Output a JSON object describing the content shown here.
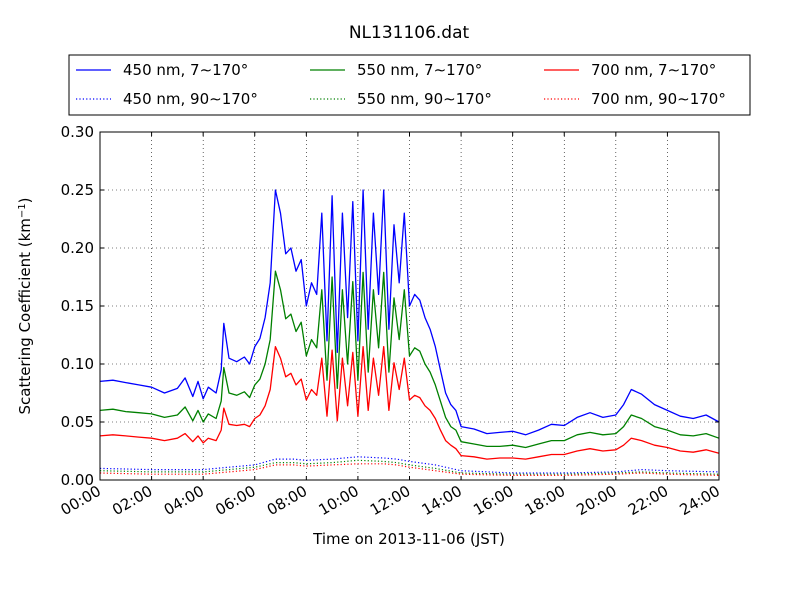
{
  "chart_data": {
    "type": "line",
    "title": "NL131106.dat",
    "xlabel": "Time on 2013-11-06 (JST)",
    "ylabel_main": "Scattering Coefficient (km",
    "ylabel_sup": "−1",
    "ylabel_close": ")",
    "xlim": [
      0,
      24
    ],
    "ylim": [
      0,
      0.3
    ],
    "grid": true,
    "legend_position": "top (above plot)",
    "x_ticks": [
      {
        "value": 0,
        "label": "00:00"
      },
      {
        "value": 2,
        "label": "02:00"
      },
      {
        "value": 4,
        "label": "04:00"
      },
      {
        "value": 6,
        "label": "06:00"
      },
      {
        "value": 8,
        "label": "08:00"
      },
      {
        "value": 10,
        "label": "10:00"
      },
      {
        "value": 12,
        "label": "12:00"
      },
      {
        "value": 14,
        "label": "14:00"
      },
      {
        "value": 16,
        "label": "16:00"
      },
      {
        "value": 18,
        "label": "18:00"
      },
      {
        "value": 20,
        "label": "20:00"
      },
      {
        "value": 22,
        "label": "22:00"
      },
      {
        "value": 24,
        "label": "24:00"
      }
    ],
    "y_ticks": [
      {
        "value": 0.0,
        "label": "0.00"
      },
      {
        "value": 0.05,
        "label": "0.05"
      },
      {
        "value": 0.1,
        "label": "0.10"
      },
      {
        "value": 0.15,
        "label": "0.15"
      },
      {
        "value": 0.2,
        "label": "0.20"
      },
      {
        "value": 0.25,
        "label": "0.25"
      },
      {
        "value": 0.3,
        "label": "0.30"
      }
    ],
    "series": [
      {
        "name": "450 nm, 7∼170°",
        "color": "#0000ff",
        "dash": "solid",
        "x": [
          0,
          0.5,
          1,
          1.5,
          2,
          2.5,
          3,
          3.3,
          3.6,
          3.8,
          4,
          4.2,
          4.5,
          4.7,
          4.8,
          5,
          5.3,
          5.6,
          5.8,
          6,
          6.2,
          6.4,
          6.6,
          6.8,
          7,
          7.2,
          7.4,
          7.6,
          7.8,
          8,
          8.2,
          8.4,
          8.6,
          8.8,
          9,
          9.2,
          9.4,
          9.6,
          9.8,
          10,
          10.2,
          10.4,
          10.6,
          10.8,
          11,
          11.2,
          11.4,
          11.6,
          11.8,
          12,
          12.2,
          12.4,
          12.6,
          12.8,
          13,
          13.2,
          13.4,
          13.6,
          13.8,
          14,
          14.5,
          15,
          15.5,
          16,
          16.5,
          17,
          17.5,
          18,
          18.5,
          19,
          19.5,
          20,
          20.3,
          20.6,
          21,
          21.5,
          22,
          22.5,
          23,
          23.5,
          24
        ],
        "y": [
          0.085,
          0.086,
          0.084,
          0.082,
          0.08,
          0.075,
          0.079,
          0.088,
          0.072,
          0.085,
          0.07,
          0.08,
          0.075,
          0.095,
          0.135,
          0.105,
          0.102,
          0.106,
          0.1,
          0.115,
          0.122,
          0.14,
          0.17,
          0.25,
          0.23,
          0.195,
          0.2,
          0.18,
          0.19,
          0.15,
          0.17,
          0.16,
          0.23,
          0.12,
          0.245,
          0.11,
          0.23,
          0.14,
          0.24,
          0.12,
          0.25,
          0.13,
          0.23,
          0.16,
          0.25,
          0.13,
          0.22,
          0.17,
          0.23,
          0.15,
          0.16,
          0.155,
          0.14,
          0.13,
          0.115,
          0.095,
          0.075,
          0.065,
          0.06,
          0.046,
          0.044,
          0.04,
          0.041,
          0.042,
          0.039,
          0.043,
          0.048,
          0.047,
          0.054,
          0.058,
          0.054,
          0.056,
          0.065,
          0.078,
          0.074,
          0.065,
          0.06,
          0.055,
          0.053,
          0.056,
          0.05
        ]
      },
      {
        "name": "550 nm, 7∼170°",
        "color": "#008000",
        "dash": "solid",
        "x": [
          0,
          0.5,
          1,
          1.5,
          2,
          2.5,
          3,
          3.3,
          3.6,
          3.8,
          4,
          4.2,
          4.5,
          4.7,
          4.8,
          5,
          5.3,
          5.6,
          5.8,
          6,
          6.2,
          6.4,
          6.6,
          6.8,
          7,
          7.2,
          7.4,
          7.6,
          7.8,
          8,
          8.2,
          8.4,
          8.6,
          8.8,
          9,
          9.2,
          9.4,
          9.6,
          9.8,
          10,
          10.2,
          10.4,
          10.6,
          10.8,
          11,
          11.2,
          11.4,
          11.6,
          11.8,
          12,
          12.2,
          12.4,
          12.6,
          12.8,
          13,
          13.2,
          13.4,
          13.6,
          13.8,
          14,
          14.5,
          15,
          15.5,
          16,
          16.5,
          17,
          17.5,
          18,
          18.5,
          19,
          19.5,
          20,
          20.3,
          20.6,
          21,
          21.5,
          22,
          22.5,
          23,
          23.5,
          24
        ],
        "y": [
          0.06,
          0.061,
          0.059,
          0.058,
          0.057,
          0.054,
          0.056,
          0.063,
          0.051,
          0.06,
          0.05,
          0.057,
          0.053,
          0.068,
          0.097,
          0.075,
          0.073,
          0.076,
          0.071,
          0.082,
          0.087,
          0.1,
          0.121,
          0.18,
          0.164,
          0.139,
          0.143,
          0.128,
          0.136,
          0.107,
          0.121,
          0.114,
          0.164,
          0.086,
          0.175,
          0.079,
          0.164,
          0.1,
          0.171,
          0.086,
          0.179,
          0.093,
          0.164,
          0.114,
          0.179,
          0.093,
          0.157,
          0.121,
          0.164,
          0.107,
          0.114,
          0.111,
          0.1,
          0.093,
          0.082,
          0.068,
          0.054,
          0.046,
          0.043,
          0.033,
          0.031,
          0.029,
          0.029,
          0.03,
          0.028,
          0.031,
          0.034,
          0.034,
          0.039,
          0.041,
          0.039,
          0.04,
          0.046,
          0.056,
          0.053,
          0.046,
          0.043,
          0.039,
          0.038,
          0.04,
          0.036
        ]
      },
      {
        "name": "700 nm, 7∼170°",
        "color": "#ff0000",
        "dash": "solid",
        "x": [
          0,
          0.5,
          1,
          1.5,
          2,
          2.5,
          3,
          3.3,
          3.6,
          3.8,
          4,
          4.2,
          4.5,
          4.7,
          4.8,
          5,
          5.3,
          5.6,
          5.8,
          6,
          6.2,
          6.4,
          6.6,
          6.8,
          7,
          7.2,
          7.4,
          7.6,
          7.8,
          8,
          8.2,
          8.4,
          8.6,
          8.8,
          9,
          9.2,
          9.4,
          9.6,
          9.8,
          10,
          10.2,
          10.4,
          10.6,
          10.8,
          11,
          11.2,
          11.4,
          11.6,
          11.8,
          12,
          12.2,
          12.4,
          12.6,
          12.8,
          13,
          13.2,
          13.4,
          13.6,
          13.8,
          14,
          14.5,
          15,
          15.5,
          16,
          16.5,
          17,
          17.5,
          18,
          18.5,
          19,
          19.5,
          20,
          20.3,
          20.6,
          21,
          21.5,
          22,
          22.5,
          23,
          23.5,
          24
        ],
        "y": [
          0.038,
          0.039,
          0.038,
          0.037,
          0.036,
          0.034,
          0.036,
          0.04,
          0.033,
          0.038,
          0.032,
          0.036,
          0.034,
          0.043,
          0.062,
          0.048,
          0.047,
          0.048,
          0.046,
          0.053,
          0.056,
          0.064,
          0.078,
          0.115,
          0.105,
          0.089,
          0.092,
          0.082,
          0.087,
          0.069,
          0.078,
          0.073,
          0.105,
          0.055,
          0.112,
          0.051,
          0.105,
          0.064,
          0.11,
          0.055,
          0.115,
          0.06,
          0.105,
          0.073,
          0.115,
          0.06,
          0.101,
          0.078,
          0.105,
          0.069,
          0.073,
          0.071,
          0.064,
          0.06,
          0.053,
          0.043,
          0.034,
          0.03,
          0.027,
          0.021,
          0.02,
          0.018,
          0.019,
          0.019,
          0.018,
          0.02,
          0.022,
          0.022,
          0.025,
          0.027,
          0.025,
          0.026,
          0.03,
          0.036,
          0.034,
          0.03,
          0.028,
          0.025,
          0.024,
          0.026,
          0.023
        ]
      },
      {
        "name": "450 nm, 90∼170°",
        "color": "#0000ff",
        "dash": "dotted",
        "x": [
          0,
          2,
          4,
          5,
          6,
          6.8,
          7.5,
          8,
          9,
          10,
          11,
          11.5,
          12,
          13,
          14,
          16,
          18,
          20,
          21,
          22,
          24
        ],
        "y": [
          0.01,
          0.009,
          0.009,
          0.011,
          0.013,
          0.018,
          0.018,
          0.017,
          0.018,
          0.02,
          0.019,
          0.018,
          0.016,
          0.013,
          0.008,
          0.006,
          0.006,
          0.007,
          0.009,
          0.008,
          0.007
        ]
      },
      {
        "name": "550 nm, 90∼170°",
        "color": "#008000",
        "dash": "dotted",
        "x": [
          0,
          2,
          4,
          5,
          6,
          6.8,
          7.5,
          8,
          9,
          10,
          11,
          11.5,
          12,
          13,
          14,
          16,
          18,
          20,
          21,
          22,
          24
        ],
        "y": [
          0.008,
          0.007,
          0.007,
          0.009,
          0.011,
          0.015,
          0.015,
          0.014,
          0.015,
          0.017,
          0.016,
          0.015,
          0.013,
          0.01,
          0.006,
          0.005,
          0.005,
          0.006,
          0.007,
          0.006,
          0.005
        ]
      },
      {
        "name": "700 nm, 90∼170°",
        "color": "#ff0000",
        "dash": "dotted",
        "x": [
          0,
          2,
          4,
          5,
          6,
          6.8,
          7.5,
          8,
          9,
          10,
          11,
          11.5,
          12,
          13,
          14,
          16,
          18,
          20,
          21,
          22,
          24
        ],
        "y": [
          0.006,
          0.005,
          0.005,
          0.007,
          0.009,
          0.013,
          0.013,
          0.012,
          0.013,
          0.014,
          0.014,
          0.013,
          0.011,
          0.008,
          0.005,
          0.004,
          0.004,
          0.005,
          0.006,
          0.005,
          0.004
        ]
      }
    ]
  }
}
